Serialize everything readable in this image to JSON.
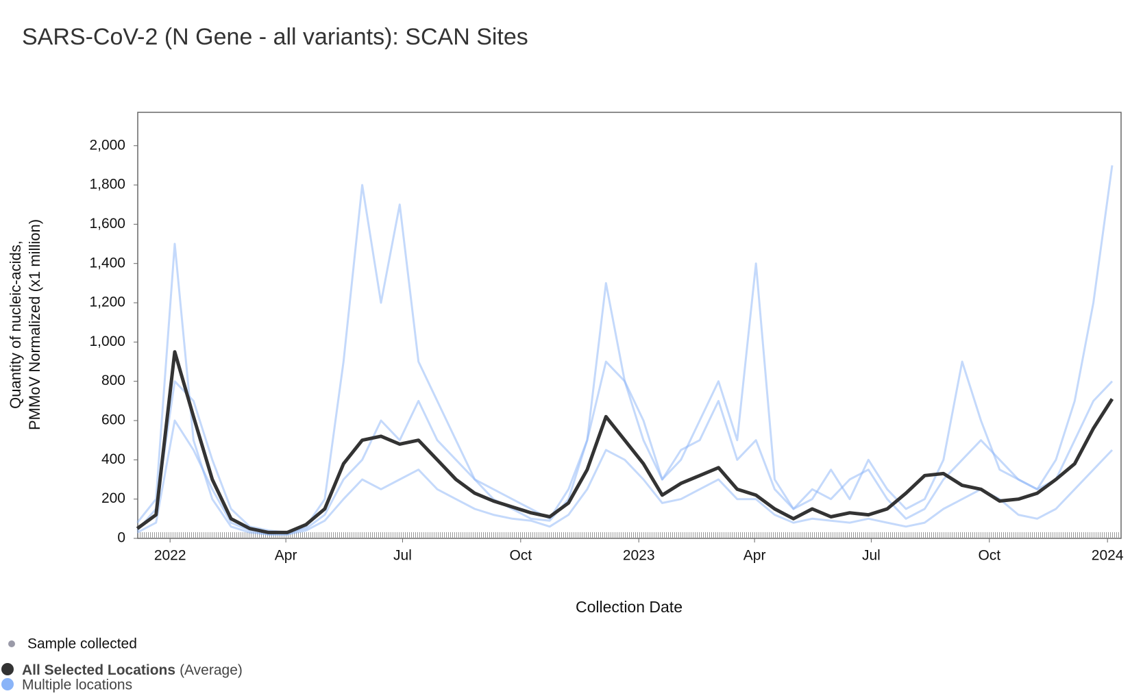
{
  "chart_data": {
    "type": "line",
    "title": "SARS-CoV-2 (N Gene - all variants): SCAN Sites",
    "y_label": [
      "Quantity of nucleic-acids,",
      "PMMoV Normalized (x1 million)"
    ],
    "x_label": "Collection Date",
    "sample_label": "Sample collected",
    "locations_label": "Multiple locations",
    "xlim": [
      2021.931,
      2024.029
    ],
    "xticks": [
      2022,
      {
        "value": 2022.247,
        "label": "Apr"
      },
      {
        "value": 2022.496,
        "label": "Jul"
      },
      {
        "value": 2022.748,
        "label": "Oct"
      },
      2023,
      {
        "value": 2023.247,
        "label": "Apr"
      },
      {
        "value": 2023.496,
        "label": "Jul"
      },
      {
        "value": 2023.748,
        "label": "Oct"
      },
      2024
    ],
    "ylim": [
      0,
      2170
    ],
    "yticks": [
      0,
      200,
      400,
      600,
      800,
      {
        "value": 1000,
        "label": "1,000"
      },
      {
        "value": 1200,
        "label": "1,200"
      },
      {
        "value": 1400,
        "label": "1,400"
      },
      {
        "value": 1600,
        "label": "1,600"
      },
      {
        "value": 1800,
        "label": "1,800"
      },
      {
        "value": 2000,
        "label": "2,000"
      }
    ],
    "x": [
      2021.93,
      2021.97,
      2022.01,
      2022.05,
      2022.09,
      2022.13,
      2022.17,
      2022.21,
      2022.25,
      2022.29,
      2022.33,
      2022.37,
      2022.41,
      2022.45,
      2022.49,
      2022.53,
      2022.57,
      2022.61,
      2022.65,
      2022.69,
      2022.73,
      2022.77,
      2022.81,
      2022.85,
      2022.89,
      2022.93,
      2022.97,
      2023.01,
      2023.05,
      2023.09,
      2023.13,
      2023.17,
      2023.21,
      2023.25,
      2023.29,
      2023.33,
      2023.37,
      2023.41,
      2023.45,
      2023.49,
      2023.53,
      2023.57,
      2023.61,
      2023.65,
      2023.69,
      2023.73,
      2023.77,
      2023.81,
      2023.85,
      2023.89,
      2023.93,
      2023.97,
      2024.01
    ],
    "series": [
      {
        "name": "All Selected Locations",
        "qualifier": "(Average)",
        "color": "#333333",
        "values": [
          50,
          120,
          950,
          620,
          300,
          100,
          50,
          30,
          30,
          70,
          150,
          380,
          500,
          520,
          480,
          500,
          400,
          300,
          230,
          190,
          160,
          130,
          110,
          180,
          350,
          620,
          500,
          380,
          220,
          280,
          320,
          360,
          250,
          220,
          150,
          100,
          150,
          110,
          130,
          120,
          150,
          230,
          320,
          330,
          270,
          250,
          190,
          200,
          230,
          300,
          380,
          560,
          710
        ]
      },
      {
        "color": "#8ab4f8",
        "values": [
          80,
          200,
          1500,
          500,
          200,
          60,
          30,
          20,
          20,
          60,
          200,
          900,
          1800,
          1200,
          1700,
          900,
          700,
          500,
          300,
          200,
          150,
          100,
          90,
          200,
          500,
          1300,
          800,
          600,
          300,
          400,
          600,
          800,
          500,
          1400,
          300,
          150,
          200,
          350,
          200,
          400,
          250,
          150,
          200,
          400,
          900,
          600,
          350,
          300,
          250,
          400,
          700,
          1200,
          1900
        ]
      },
      {
        "color": "#8ab4f8",
        "values": [
          40,
          150,
          800,
          700,
          400,
          150,
          60,
          40,
          30,
          50,
          120,
          300,
          400,
          600,
          500,
          700,
          500,
          400,
          300,
          250,
          200,
          150,
          100,
          250,
          500,
          900,
          800,
          500,
          300,
          450,
          500,
          700,
          400,
          500,
          250,
          150,
          250,
          200,
          300,
          350,
          200,
          100,
          150,
          300,
          400,
          500,
          400,
          300,
          250,
          300,
          500,
          700,
          800
        ]
      },
      {
        "color": "#8ab4f8",
        "values": [
          30,
          80,
          600,
          450,
          250,
          80,
          40,
          20,
          20,
          40,
          90,
          200,
          300,
          250,
          300,
          350,
          250,
          200,
          150,
          120,
          100,
          90,
          60,
          120,
          250,
          450,
          400,
          300,
          180,
          200,
          250,
          300,
          200,
          200,
          120,
          80,
          100,
          90,
          80,
          100,
          80,
          60,
          80,
          150,
          200,
          250,
          200,
          120,
          100,
          150,
          250,
          350,
          450
        ]
      }
    ]
  }
}
